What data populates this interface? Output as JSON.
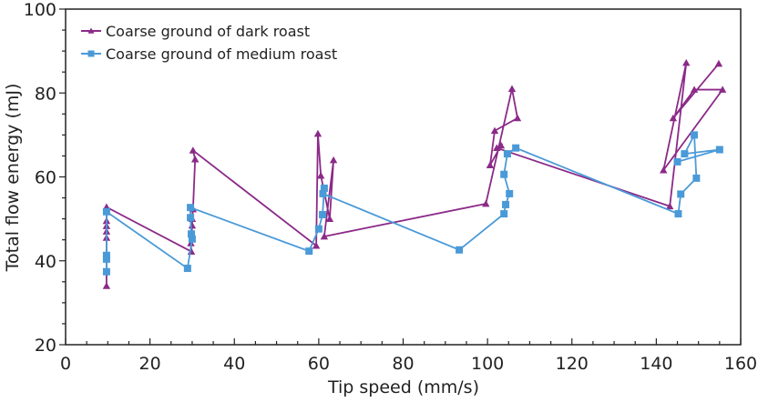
{
  "chart_data": {
    "type": "scatter",
    "title": "",
    "xlabel": "Tip speed (mm/s)",
    "ylabel": "Total flow energy (mJ)",
    "xlim": [
      0,
      160
    ],
    "ylim": [
      20,
      100
    ],
    "x_ticks": [
      0,
      20,
      40,
      60,
      80,
      100,
      120,
      140,
      160
    ],
    "x_tick_labels": [
      "0",
      "20",
      "40",
      "60",
      "80",
      "100",
      "120",
      "140",
      "160"
    ],
    "y_ticks": [
      20,
      40,
      60,
      80,
      100
    ],
    "y_tick_labels": [
      "20",
      "40",
      "60",
      "80",
      "100"
    ],
    "x_minor_step": 5,
    "y_minor_step": 5,
    "grid": false,
    "legend_position": "top-left",
    "series": [
      {
        "name": "Coarse ground of dark roast",
        "color": "#8b2a88",
        "marker": "triangle",
        "points": [
          [
            9.7,
            34.0
          ],
          [
            9.7,
            45.5
          ],
          [
            9.7,
            47.0
          ],
          [
            9.7,
            48.3
          ],
          [
            9.7,
            49.5
          ],
          [
            9.7,
            52.8
          ],
          [
            29.8,
            42.2
          ],
          [
            29.7,
            44.2
          ],
          [
            30.0,
            48.4
          ],
          [
            30.0,
            50.0
          ],
          [
            30.2,
            52.3
          ],
          [
            30.7,
            64.2
          ],
          [
            30.2,
            66.3
          ],
          [
            59.4,
            43.6
          ],
          [
            59.8,
            70.3
          ],
          [
            60.5,
            60.3
          ],
          [
            62.6,
            50.0
          ],
          [
            63.5,
            64.0
          ],
          [
            61.3,
            45.8
          ],
          [
            99.6,
            53.6
          ],
          [
            105.8,
            81.0
          ],
          [
            107.1,
            74.0
          ],
          [
            101.7,
            71.0
          ],
          [
            100.6,
            62.8
          ],
          [
            103.2,
            67.5
          ],
          [
            102.2,
            66.9
          ],
          [
            143.2,
            53.0
          ],
          [
            147.1,
            87.2
          ],
          [
            141.7,
            61.6
          ],
          [
            155.7,
            80.8
          ],
          [
            149.0,
            80.8
          ],
          [
            144.0,
            74.0
          ],
          [
            154.8,
            87.0
          ]
        ]
      },
      {
        "name": "Coarse ground of medium roast",
        "color": "#4a9ad8",
        "marker": "square",
        "points": [
          [
            9.7,
            37.4
          ],
          [
            9.7,
            40.4
          ],
          [
            9.7,
            41.3
          ],
          [
            9.7,
            51.7
          ],
          [
            28.9,
            38.2
          ],
          [
            30.0,
            45.2
          ],
          [
            29.8,
            46.4
          ],
          [
            29.6,
            50.3
          ],
          [
            29.6,
            52.7
          ],
          [
            57.7,
            42.3
          ],
          [
            60.0,
            47.6
          ],
          [
            60.9,
            51.0
          ],
          [
            61.3,
            57.3
          ],
          [
            61.0,
            56.0
          ],
          [
            93.3,
            42.6
          ],
          [
            103.9,
            51.2
          ],
          [
            104.3,
            53.4
          ],
          [
            105.2,
            56.0
          ],
          [
            103.9,
            60.6
          ],
          [
            104.7,
            65.5
          ],
          [
            106.7,
            66.9
          ],
          [
            145.2,
            51.2
          ],
          [
            145.8,
            55.9
          ],
          [
            149.5,
            59.7
          ],
          [
            149.0,
            70.0
          ],
          [
            146.7,
            65.5
          ],
          [
            155.0,
            66.5
          ],
          [
            145.0,
            63.6
          ]
        ]
      }
    ]
  }
}
